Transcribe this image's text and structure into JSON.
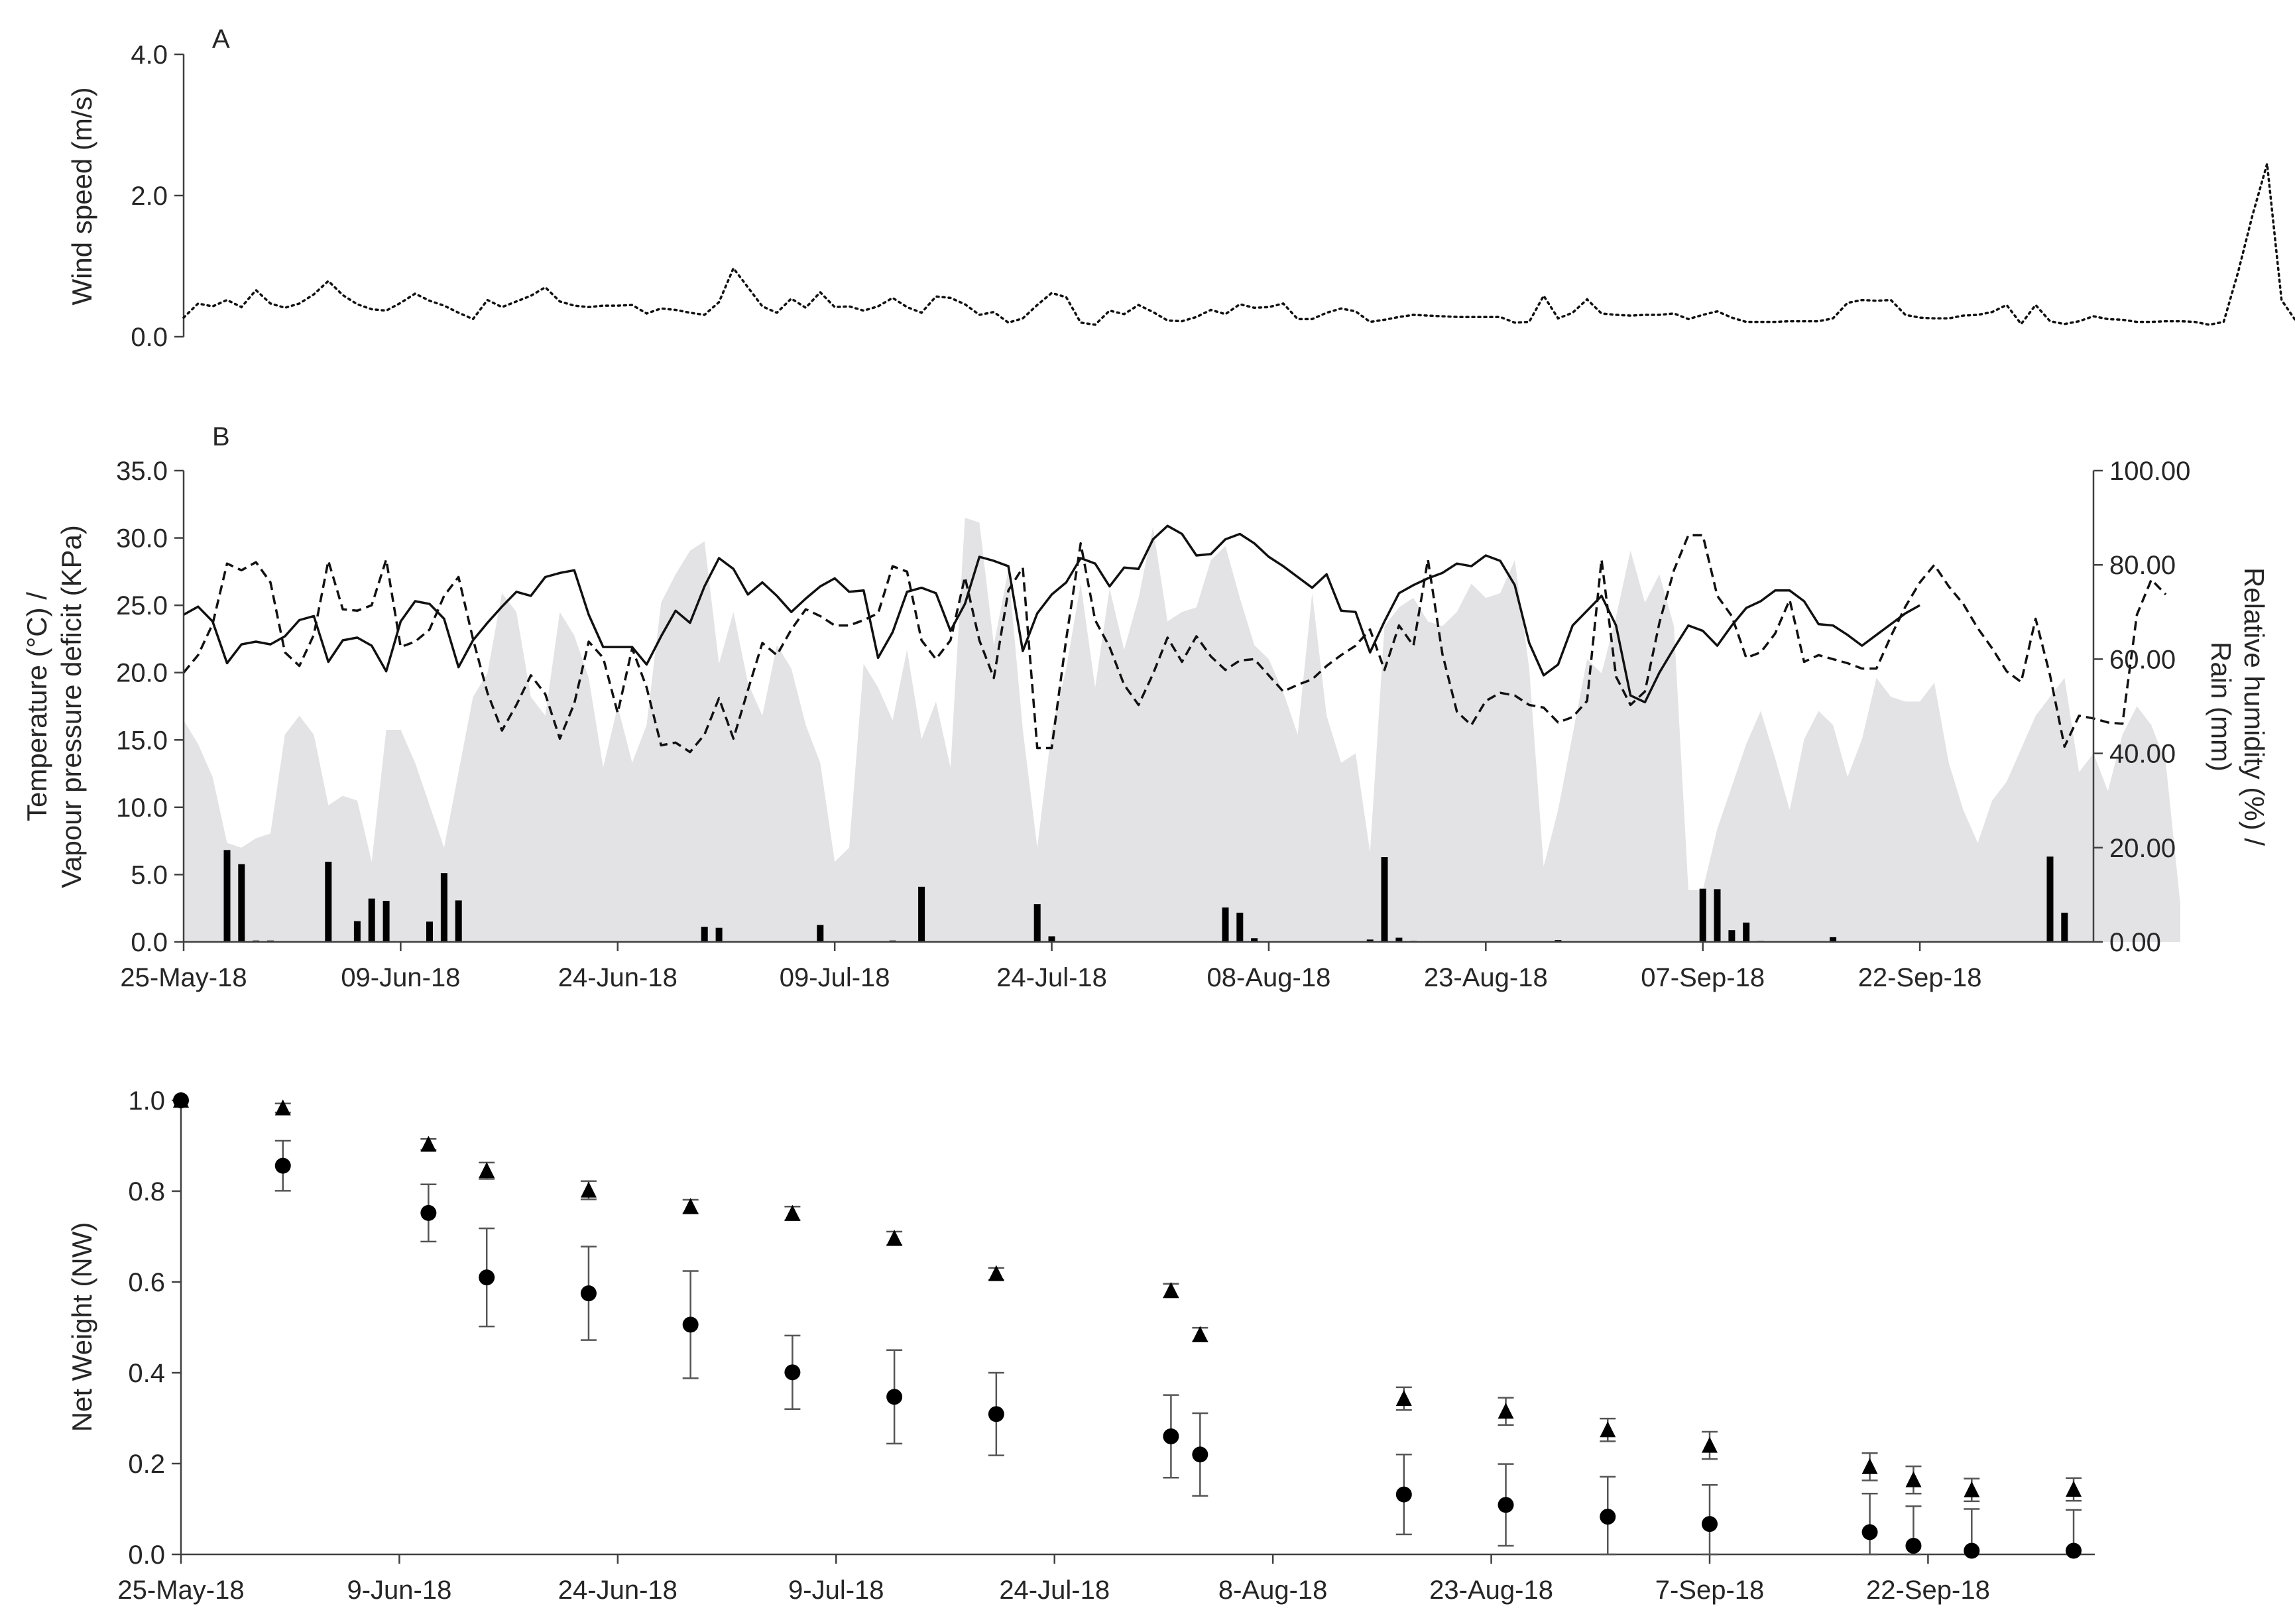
{
  "chart_data": [
    {
      "panel": "A",
      "type": "line",
      "panel_label": "A",
      "ylabel": "Wind speed (m/s)",
      "ylim": [
        0,
        4.0
      ],
      "y_ticks": [
        "0.0",
        "2.0",
        "4.0"
      ],
      "series": [
        {
          "name": "Wind speed",
          "style": "dotted",
          "day_start": 0,
          "values": [
            0.27,
            0.47,
            0.43,
            0.52,
            0.42,
            0.66,
            0.47,
            0.41,
            0.47,
            0.6,
            0.79,
            0.59,
            0.46,
            0.39,
            0.37,
            0.48,
            0.61,
            0.51,
            0.44,
            0.34,
            0.25,
            0.52,
            0.42,
            0.5,
            0.58,
            0.7,
            0.5,
            0.44,
            0.42,
            0.44,
            0.44,
            0.45,
            0.33,
            0.4,
            0.38,
            0.34,
            0.31,
            0.49,
            0.97,
            0.7,
            0.43,
            0.34,
            0.54,
            0.41,
            0.63,
            0.42,
            0.43,
            0.37,
            0.43,
            0.55,
            0.42,
            0.34,
            0.57,
            0.55,
            0.46,
            0.31,
            0.35,
            0.2,
            0.26,
            0.45,
            0.62,
            0.56,
            0.2,
            0.17,
            0.37,
            0.32,
            0.45,
            0.35,
            0.23,
            0.22,
            0.28,
            0.38,
            0.32,
            0.46,
            0.41,
            0.42,
            0.47,
            0.25,
            0.25,
            0.34,
            0.4,
            0.36,
            0.21,
            0.24,
            0.28,
            0.31,
            0.3,
            0.29,
            0.28,
            0.28,
            0.28,
            0.28,
            0.2,
            0.21,
            0.58,
            0.26,
            0.34,
            0.53,
            0.33,
            0.31,
            0.3,
            0.31,
            0.31,
            0.33,
            0.25,
            0.31,
            0.36,
            0.27,
            0.21,
            0.21,
            0.21,
            0.22,
            0.22,
            0.22,
            0.26,
            0.48,
            0.52,
            0.51,
            0.52,
            0.31,
            0.27,
            0.26,
            0.26,
            0.3,
            0.31,
            0.35,
            0.45,
            0.18,
            0.45,
            0.22,
            0.18,
            0.22,
            0.29,
            0.25,
            0.24,
            0.21,
            0.21,
            0.22,
            0.22,
            0.21,
            0.17,
            0.21,
            0.92,
            1.73,
            2.45,
            0.52,
            0.22,
            0.21,
            0.23,
            0.2,
            0.25,
            0.26,
            0.24,
            0.27,
            1.12,
            0.75,
            0.43,
            0.23,
            0.23,
            0.31,
            0.42,
            0.3,
            0.31,
            0.53
          ]
        }
      ]
    },
    {
      "panel": "B",
      "type": "line",
      "panel_label": "B",
      "ylabel_left_line1": "Temperature (°C) /",
      "ylabel_left_line2": "Vapour pressure deficit (KPa)",
      "ylabel_right_line1": "Relative humidity (%) /",
      "ylabel_right_line2": "Rain (mm)",
      "ylim_left": [
        0,
        35
      ],
      "ylim_right": [
        0,
        100
      ],
      "y_ticks_left": [
        "0.0",
        "5.0",
        "10.0",
        "15.0",
        "20.0",
        "25.0",
        "30.0",
        "35.0"
      ],
      "y_ticks_right": [
        "0.00",
        "20.00",
        "40.00",
        "60.00",
        "80.00",
        "100.00"
      ],
      "x_tick_labels": [
        "25-May-18",
        "09-Jun-18",
        "24-Jun-18",
        "09-Jul-18",
        "24-Jul-18",
        "08-Aug-18",
        "23-Aug-18",
        "07-Sep-18",
        "22-Sep-18"
      ],
      "x_tick_days": [
        0,
        15,
        30,
        45,
        60,
        75,
        90,
        105,
        120
      ],
      "x_range_days": [
        0,
        132
      ],
      "series": [
        {
          "name": "Temperature",
          "style": "solid",
          "axis": "left",
          "day_start": 0,
          "values": [
            24.3,
            24.9,
            23.8,
            20.7,
            22.1,
            22.3,
            22.1,
            22.7,
            23.9,
            24.2,
            20.8,
            22.4,
            22.6,
            22.0,
            20.1,
            23.8,
            25.3,
            25.1,
            24.0,
            20.4,
            22.4,
            23.7,
            24.9,
            26.0,
            25.7,
            27.1,
            27.4,
            27.6,
            24.3,
            21.9,
            21.9,
            21.9,
            20.6,
            22.7,
            24.6,
            23.7,
            26.4,
            28.5,
            27.7,
            25.8,
            26.7,
            25.7,
            24.5,
            25.5,
            26.4,
            27.0,
            26.0,
            26.1,
            21.1,
            23.0,
            26.0,
            26.3,
            25.9,
            23.1,
            25.1,
            28.6,
            28.3,
            27.9,
            21.6,
            24.4,
            25.8,
            26.7,
            28.5,
            28.1,
            26.4,
            27.8,
            27.7,
            29.9,
            30.9,
            30.3,
            28.7,
            28.8,
            29.9,
            30.3,
            29.6,
            28.6,
            27.9,
            27.1,
            26.3,
            27.3,
            24.6,
            24.5,
            21.5,
            23.8,
            25.9,
            26.5,
            27.0,
            27.4,
            28.1,
            27.9,
            28.7,
            28.3,
            26.5,
            22.2,
            19.8,
            20.6,
            23.5,
            24.6,
            25.7,
            23.5,
            18.3,
            17.8,
            20.0,
            21.8,
            23.5,
            23.1,
            22.0,
            23.5,
            24.8,
            25.3,
            26.1,
            26.1,
            25.3,
            23.6,
            23.5,
            22.8,
            22.0,
            22.8,
            23.6,
            24.4,
            25.0
          ]
        },
        {
          "name": "Vapour pressure deficit",
          "style": "dashed",
          "axis": "left",
          "day_start": 0,
          "values": [
            20.0,
            21.3,
            23.6,
            28.1,
            27.6,
            28.2,
            26.7,
            21.5,
            20.5,
            22.8,
            28.3,
            24.7,
            24.6,
            25.0,
            28.4,
            21.9,
            22.3,
            23.2,
            25.7,
            27.1,
            22.5,
            18.5,
            15.7,
            17.6,
            19.8,
            18.4,
            15.1,
            17.7,
            22.3,
            21.1,
            17.0,
            21.8,
            18.9,
            14.6,
            14.8,
            14.1,
            15.4,
            18.1,
            15.1,
            18.7,
            22.2,
            21.3,
            23.2,
            24.7,
            24.2,
            23.5,
            23.5,
            23.9,
            24.4,
            27.9,
            27.5,
            22.4,
            21.0,
            22.4,
            27.1,
            22.4,
            19.6,
            26.1,
            27.8,
            14.4,
            14.4,
            22.5,
            29.6,
            23.9,
            21.9,
            19.1,
            17.6,
            19.9,
            22.6,
            20.8,
            22.7,
            21.2,
            20.2,
            20.9,
            21.0,
            19.8,
            18.6,
            19.1,
            19.5,
            20.5,
            21.3,
            22.0,
            23.2,
            20.2,
            23.5,
            22.0,
            28.4,
            21.4,
            17.1,
            16.1,
            17.9,
            18.5,
            18.3,
            17.6,
            17.4,
            16.3,
            16.7,
            17.9,
            28.4,
            19.7,
            17.6,
            18.6,
            23.7,
            27.6,
            30.2,
            30.2,
            25.7,
            24.2,
            21.1,
            21.5,
            22.9,
            25.4,
            20.8,
            21.3,
            21.0,
            20.7,
            20.3,
            20.3,
            22.7,
            24.9,
            26.7,
            28.0,
            26.4,
            25.1,
            23.3,
            21.8,
            20.1,
            19.3,
            24.0,
            19.8,
            14.5,
            16.8,
            16.6,
            16.3,
            16.2,
            24.3,
            26.9,
            25.8
          ]
        },
        {
          "name": "Relative humidity",
          "style": "area",
          "color": "#e3e3e5",
          "axis": "right",
          "day_start": 0,
          "values": [
            47,
            42,
            35,
            21,
            20,
            22,
            23,
            44,
            48,
            44,
            29,
            31,
            30,
            17,
            45,
            45,
            38,
            29,
            20,
            36,
            52,
            57,
            74,
            70,
            52,
            48,
            70,
            65,
            56,
            37,
            50,
            38,
            46,
            72,
            78,
            83,
            85,
            59,
            70,
            55,
            48,
            63,
            58,
            46,
            38,
            17,
            20,
            59,
            54,
            47,
            62,
            43,
            51,
            37,
            90,
            89,
            63,
            79,
            45,
            20,
            45,
            58,
            76,
            54,
            75,
            62,
            73,
            88,
            68,
            70,
            71,
            81,
            84,
            73,
            63,
            60,
            53,
            44,
            74,
            48,
            38,
            40,
            19,
            67,
            71,
            73,
            68,
            67,
            70,
            76,
            73,
            74,
            81,
            58,
            16,
            28,
            44,
            60,
            57,
            69,
            83,
            72,
            78,
            67,
            11,
            11,
            24,
            33,
            42,
            49,
            39,
            28,
            43,
            49,
            46,
            35,
            43,
            56,
            52,
            51,
            51,
            55,
            38,
            28,
            21,
            30,
            34,
            41,
            48,
            52,
            56,
            36,
            40,
            32,
            44,
            50,
            46,
            38,
            8
          ]
        },
        {
          "name": "Rain",
          "type": "bar",
          "axis": "right",
          "days": [
            3,
            4,
            5,
            6,
            10,
            12,
            13,
            14,
            17,
            18,
            19,
            36,
            37,
            44,
            49,
            51,
            51,
            59,
            60,
            72,
            73,
            74,
            82,
            83,
            84,
            85,
            95,
            105,
            106,
            107,
            108,
            109,
            114,
            129,
            130,
            131
          ],
          "values": [
            19.5,
            16.5,
            0.3,
            0.3,
            17.0,
            4.4,
            9.2,
            8.7,
            4.3,
            14.6,
            8.8,
            3.2,
            3.0,
            3.6,
            0.3,
            0.3,
            11.7,
            8.0,
            1.2,
            7.3,
            6.2,
            0.8,
            0.5,
            18.0,
            0.9,
            0.2,
            0.4,
            11.3,
            11.2,
            2.5,
            4.1,
            0.2,
            1.0,
            18.1,
            6.2,
            0.1
          ]
        }
      ]
    },
    {
      "panel": "C",
      "type": "scatter",
      "ylabel": "Net Weight (NW)",
      "ylim": [
        0,
        1.0
      ],
      "y_ticks": [
        "0.0",
        "0.2",
        "0.4",
        "0.6",
        "0.8",
        "1.0"
      ],
      "x_tick_labels": [
        "25-May-18",
        "9-Jun-18",
        "24-Jun-18",
        "9-Jul-18",
        "24-Jul-18",
        "8-Aug-18",
        "23-Aug-18",
        "7-Sep-18",
        "22-Sep-18"
      ],
      "x_tick_days": [
        0,
        15,
        30,
        45,
        60,
        75,
        90,
        105,
        120
      ],
      "x_range_days": [
        0,
        131
      ],
      "series": [
        {
          "name": "Triangles",
          "marker": "triangle",
          "days": [
            0,
            7,
            17,
            21,
            28,
            35,
            42,
            49,
            56,
            68,
            70,
            84,
            91,
            98,
            105,
            116,
            119,
            123,
            130
          ],
          "values": [
            1.0,
            0.983,
            0.903,
            0.845,
            0.802,
            0.766,
            0.751,
            0.696,
            0.618,
            0.581,
            0.484,
            0.343,
            0.315,
            0.274,
            0.24,
            0.193,
            0.164,
            0.142,
            0.143
          ],
          "errors": [
            0,
            0.01,
            0.012,
            0.018,
            0.02,
            0.015,
            0.015,
            0.015,
            0.013,
            0.015,
            0.015,
            0.025,
            0.03,
            0.025,
            0.03,
            0.03,
            0.03,
            0.025,
            0.025
          ]
        },
        {
          "name": "Circles",
          "marker": "circle",
          "days": [
            0,
            7,
            17,
            21,
            28,
            35,
            42,
            49,
            56,
            68,
            70,
            84,
            91,
            98,
            105,
            116,
            119,
            123,
            130
          ],
          "values": [
            1.0,
            0.856,
            0.752,
            0.61,
            0.575,
            0.506,
            0.401,
            0.347,
            0.309,
            0.26,
            0.22,
            0.132,
            0.109,
            0.083,
            0.067,
            0.049,
            0.019,
            0.008,
            0.008
          ],
          "errors": [
            0,
            0.055,
            0.063,
            0.108,
            0.103,
            0.118,
            0.081,
            0.103,
            0.091,
            0.091,
            0.091,
            0.088,
            0.09,
            0.088,
            0.086,
            0.085,
            0.087,
            0.092,
            0.09
          ]
        }
      ]
    }
  ]
}
